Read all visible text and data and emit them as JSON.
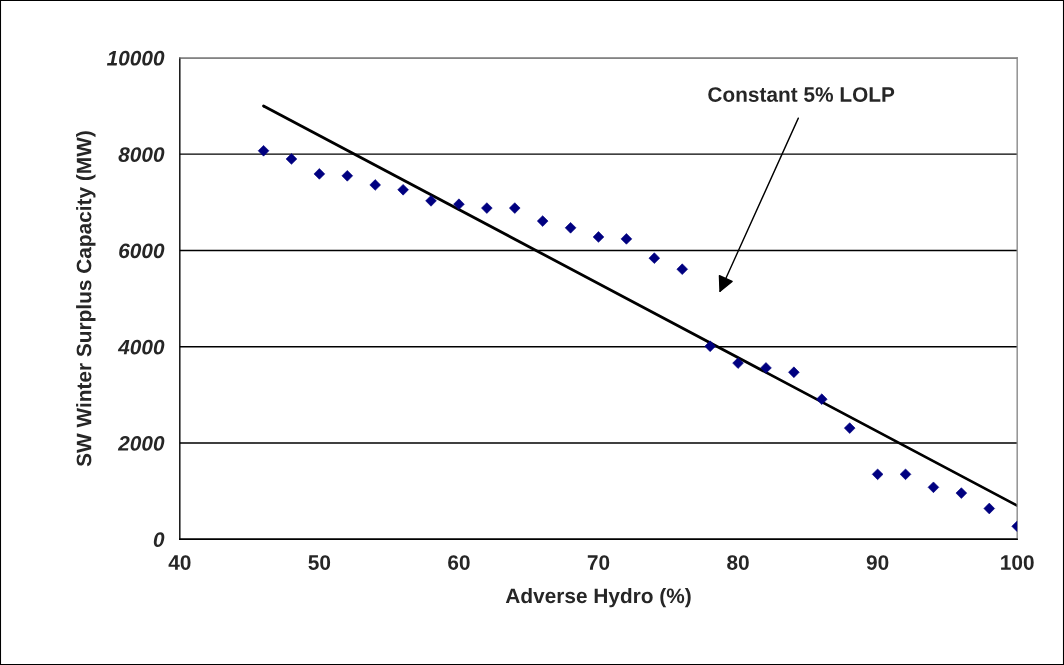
{
  "chart_data": {
    "type": "scatter",
    "xlabel": "Adverse Hydro (%)",
    "ylabel": "SW Winter Surplus Capacity (MW)",
    "xlim": [
      40,
      100
    ],
    "xticks": [
      40,
      50,
      60,
      70,
      80,
      90,
      100
    ],
    "ylim": [
      0,
      10000
    ],
    "yticks": [
      0,
      2000,
      4000,
      6000,
      8000,
      10000
    ],
    "grid": "y",
    "marker": "diamond",
    "series": [
      {
        "color": "#000080",
        "x": [
          46,
          48,
          50,
          52,
          54,
          56,
          58,
          60,
          62,
          64,
          66,
          68,
          70,
          72,
          74,
          76,
          78,
          80,
          82,
          84,
          86,
          88,
          90,
          92,
          94,
          96,
          98,
          100
        ],
        "values": [
          8070,
          7900,
          7590,
          7550,
          7360,
          7260,
          7030,
          6960,
          6880,
          6880,
          6610,
          6470,
          6280,
          6240,
          5840,
          5610,
          4010,
          3660,
          3560,
          3470,
          2910,
          2310,
          1350,
          1350,
          1080,
          960,
          640,
          270
        ]
      },
      {
        "type": "line",
        "color": "#000000",
        "marker": "none",
        "line_style": "solid",
        "x": [
          46,
          100
        ],
        "values": [
          9000,
          700
        ]
      }
    ],
    "annotations": [
      "Constant 5% LOLP"
    ]
  }
}
